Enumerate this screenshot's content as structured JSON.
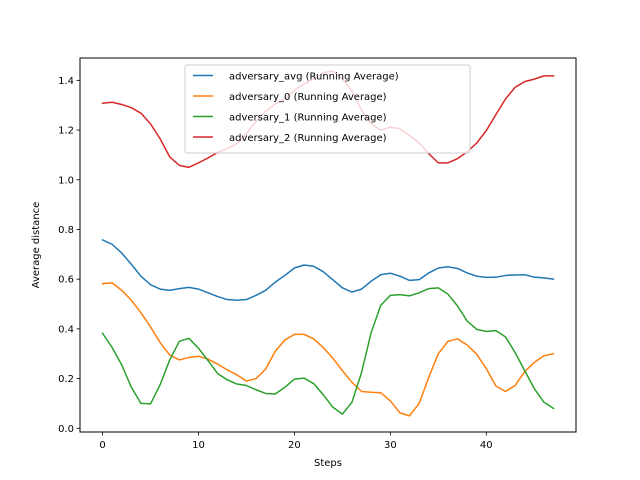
{
  "chart_data": {
    "type": "line",
    "title": "",
    "xlabel": "Steps",
    "ylabel": "Average distance",
    "xlim": [
      -2.35,
      49.35
    ],
    "ylim": [
      -0.015,
      1.49
    ],
    "xticks": [
      0,
      10,
      20,
      30,
      40
    ],
    "yticks": [
      0.0,
      0.2,
      0.4,
      0.6,
      0.8,
      1.0,
      1.2,
      1.4
    ],
    "ytick_labels": [
      "0.0",
      "0.2",
      "0.4",
      "0.6",
      "0.8",
      "1.0",
      "1.2",
      "1.4"
    ],
    "grid": false,
    "legend_position": "upper center",
    "x": [
      0,
      1,
      2,
      3,
      4,
      5,
      6,
      7,
      8,
      9,
      10,
      11,
      12,
      13,
      14,
      15,
      16,
      17,
      18,
      19,
      20,
      21,
      22,
      23,
      24,
      25,
      26,
      27,
      28,
      29,
      30,
      31,
      32,
      33,
      34,
      35,
      36,
      37,
      38,
      39,
      40,
      41,
      42,
      43,
      44,
      45,
      46,
      47
    ],
    "series": [
      {
        "name": "adversary_avg (Running Average)",
        "color": "#1f77b4",
        "values": [
          0.758,
          0.74,
          0.705,
          0.66,
          0.612,
          0.578,
          0.56,
          0.555,
          0.562,
          0.567,
          0.56,
          0.545,
          0.53,
          0.518,
          0.515,
          0.518,
          0.535,
          0.555,
          0.588,
          0.615,
          0.645,
          0.657,
          0.652,
          0.63,
          0.598,
          0.565,
          0.548,
          0.56,
          0.592,
          0.618,
          0.624,
          0.612,
          0.595,
          0.598,
          0.625,
          0.645,
          0.65,
          0.643,
          0.625,
          0.612,
          0.607,
          0.608,
          0.615,
          0.617,
          0.618,
          0.608,
          0.605,
          0.6
        ]
      },
      {
        "name": "adversary_0 (Running Average)",
        "color": "#ff7f0e",
        "values": [
          0.582,
          0.585,
          0.555,
          0.515,
          0.465,
          0.408,
          0.345,
          0.295,
          0.275,
          0.285,
          0.29,
          0.278,
          0.258,
          0.235,
          0.215,
          0.19,
          0.2,
          0.238,
          0.31,
          0.355,
          0.378,
          0.378,
          0.36,
          0.325,
          0.282,
          0.232,
          0.185,
          0.148,
          0.145,
          0.143,
          0.11,
          0.062,
          0.05,
          0.1,
          0.205,
          0.3,
          0.35,
          0.36,
          0.335,
          0.298,
          0.24,
          0.17,
          0.148,
          0.172,
          0.228,
          0.265,
          0.292,
          0.3
        ]
      },
      {
        "name": "adversary_1 (Running Average)",
        "color": "#2ca02c",
        "values": [
          0.382,
          0.325,
          0.255,
          0.165,
          0.1,
          0.098,
          0.175,
          0.275,
          0.35,
          0.362,
          0.322,
          0.272,
          0.22,
          0.195,
          0.178,
          0.172,
          0.155,
          0.14,
          0.138,
          0.165,
          0.198,
          0.202,
          0.18,
          0.135,
          0.085,
          0.057,
          0.105,
          0.225,
          0.385,
          0.495,
          0.535,
          0.538,
          0.533,
          0.545,
          0.562,
          0.565,
          0.54,
          0.492,
          0.432,
          0.398,
          0.39,
          0.393,
          0.368,
          0.305,
          0.232,
          0.16,
          0.105,
          0.08
        ]
      },
      {
        "name": "adversary_2 (Running Average)",
        "color": "#d62728",
        "values": [
          1.308,
          1.312,
          1.303,
          1.29,
          1.268,
          1.225,
          1.165,
          1.092,
          1.058,
          1.05,
          1.068,
          1.088,
          1.11,
          1.125,
          1.145,
          1.185,
          1.235,
          1.275,
          1.305,
          1.325,
          1.36,
          1.385,
          1.405,
          1.43,
          1.438,
          1.405,
          1.358,
          1.28,
          1.225,
          1.2,
          1.212,
          1.205,
          1.178,
          1.148,
          1.105,
          1.068,
          1.068,
          1.085,
          1.112,
          1.148,
          1.198,
          1.262,
          1.325,
          1.372,
          1.395,
          1.405,
          1.418,
          1.418
        ]
      }
    ]
  }
}
